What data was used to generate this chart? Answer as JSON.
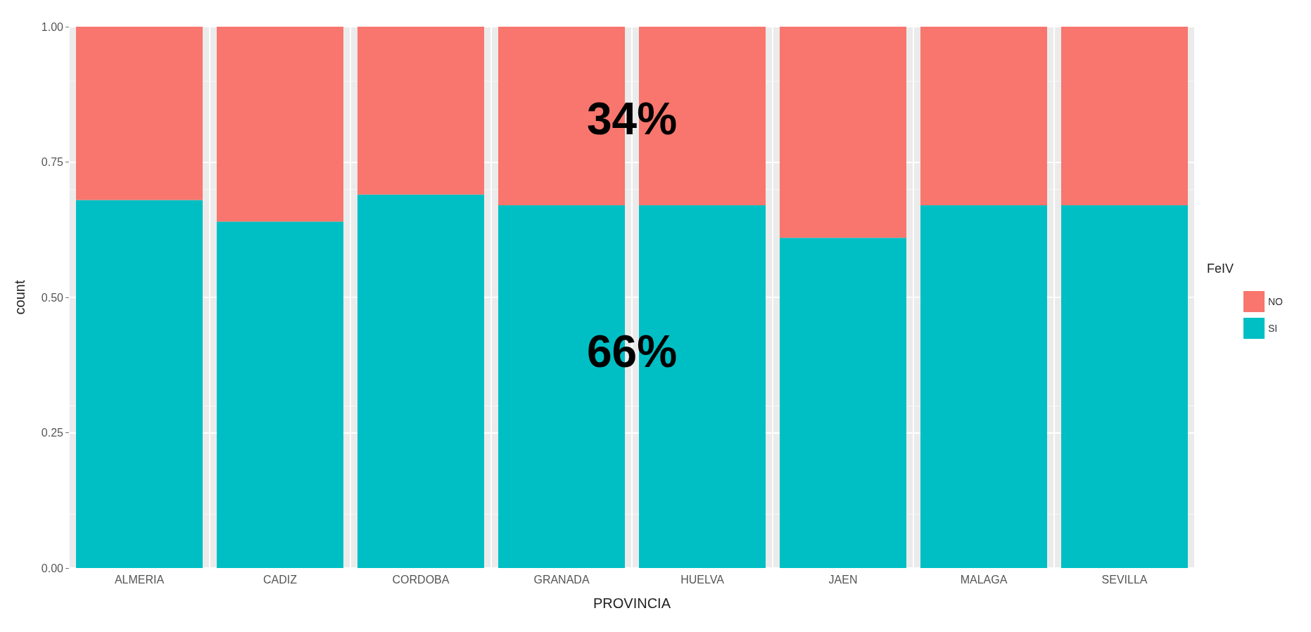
{
  "chart_data": {
    "type": "bar",
    "stacked": true,
    "xlabel": "PROVINCIA",
    "ylabel": "count",
    "legend_title": "FeIV",
    "legend": "right",
    "grid": true,
    "categories": [
      "ALMERIA",
      "CADIZ",
      "CORDOBA",
      "GRANADA",
      "HUELVA",
      "JAEN",
      "MALAGA",
      "SEVILLA"
    ],
    "series": [
      {
        "name": "SI",
        "color": "#00bfc4",
        "values": [
          0.68,
          0.64,
          0.69,
          0.67,
          0.67,
          0.61,
          0.67,
          0.67
        ]
      },
      {
        "name": "NO",
        "color": "#f8766d",
        "values": [
          0.32,
          0.36,
          0.31,
          0.33,
          0.33,
          0.39,
          0.33,
          0.33
        ]
      }
    ],
    "ylim": [
      0,
      1
    ],
    "yticks": [
      {
        "value": 0,
        "label": "0.00"
      },
      {
        "value": 0.25,
        "label": "0.25"
      },
      {
        "value": 0.5,
        "label": "0.50"
      },
      {
        "value": 0.75,
        "label": "0.75"
      },
      {
        "value": 1,
        "label": "1.00"
      }
    ],
    "annotations": [
      "34%",
      "66%"
    ]
  }
}
